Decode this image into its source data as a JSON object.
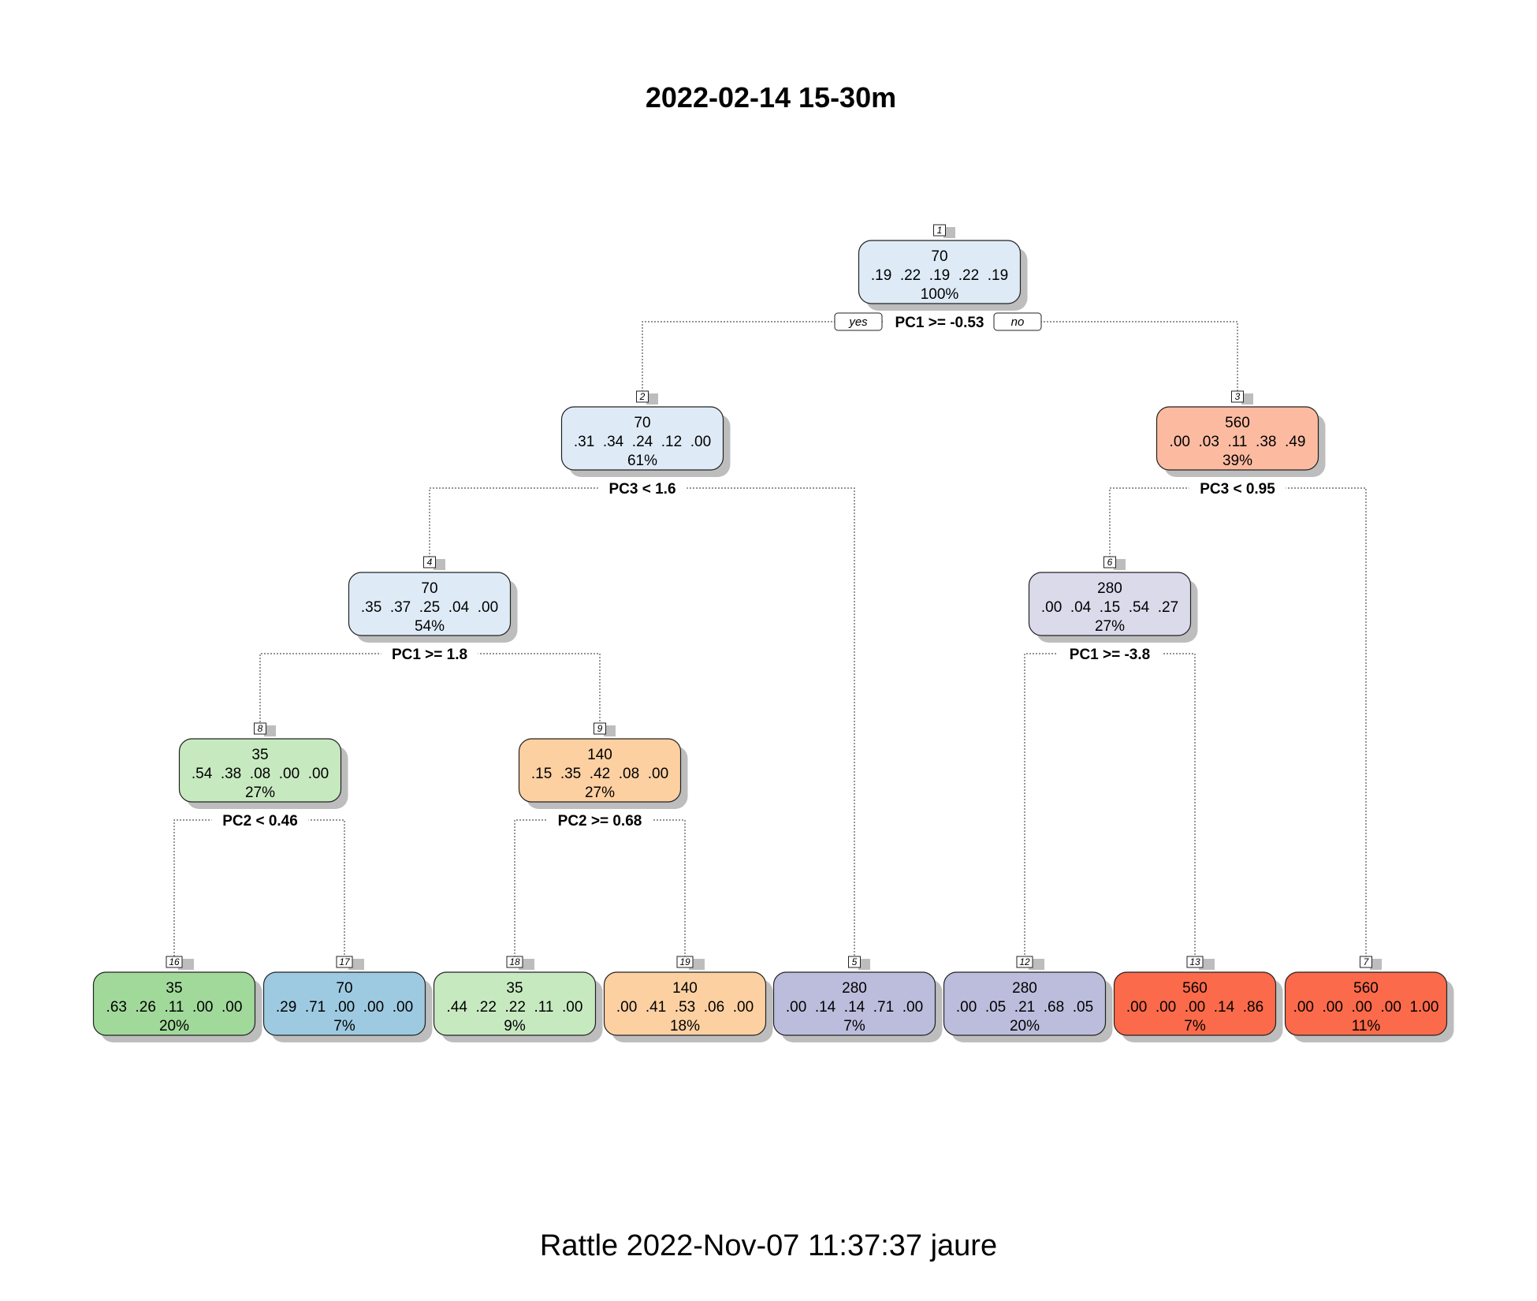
{
  "title": "2022-02-14 15-30m",
  "footer": "Rattle 2022-Nov-07 11:37:37 jaure",
  "branch_labels": {
    "yes": "yes",
    "no": "no"
  },
  "colors": {
    "light_blue": "#deebf7",
    "blue": "#9ecae1",
    "light_salmon": "#fcbba1",
    "light_lavender": "#dadaeb",
    "lavender": "#bcbddc",
    "light_green": "#c7e9c0",
    "green": "#a1d99b",
    "light_orange": "#fdd0a2",
    "red": "#fb6a4a"
  },
  "nodes": [
    {
      "id": "1",
      "label": "70",
      "probs": ".19  .22  .19  .22  .19",
      "pct": "100%",
      "split": "PC1 >= -0.53",
      "color": "light_blue"
    },
    {
      "id": "2",
      "label": "70",
      "probs": ".31  .34  .24  .12  .00",
      "pct": "61%",
      "split": "PC3 < 1.6",
      "color": "light_blue"
    },
    {
      "id": "3",
      "label": "560",
      "probs": ".00  .03  .11  .38  .49",
      "pct": "39%",
      "split": "PC3 < 0.95",
      "color": "light_salmon"
    },
    {
      "id": "4",
      "label": "70",
      "probs": ".35  .37  .25  .04  .00",
      "pct": "54%",
      "split": "PC1 >= 1.8",
      "color": "light_blue"
    },
    {
      "id": "6",
      "label": "280",
      "probs": ".00  .04  .15  .54  .27",
      "pct": "27%",
      "split": "PC1 >= -3.8",
      "color": "light_lavender"
    },
    {
      "id": "8",
      "label": "35",
      "probs": ".54  .38  .08  .00  .00",
      "pct": "27%",
      "split": "PC2 < 0.46",
      "color": "light_green"
    },
    {
      "id": "9",
      "label": "140",
      "probs": ".15  .35  .42  .08  .00",
      "pct": "27%",
      "split": "PC2 >= 0.68",
      "color": "light_orange"
    },
    {
      "id": "16",
      "label": "35",
      "probs": ".63  .26  .11  .00  .00",
      "pct": "20%",
      "split": "",
      "color": "green"
    },
    {
      "id": "17",
      "label": "70",
      "probs": ".29  .71  .00  .00  .00",
      "pct": "7%",
      "split": "",
      "color": "blue"
    },
    {
      "id": "18",
      "label": "35",
      "probs": ".44  .22  .22  .11  .00",
      "pct": "9%",
      "split": "",
      "color": "light_green"
    },
    {
      "id": "19",
      "label": "140",
      "probs": ".00  .41  .53  .06  .00",
      "pct": "18%",
      "split": "",
      "color": "light_orange"
    },
    {
      "id": "5",
      "label": "280",
      "probs": ".00  .14  .14  .71  .00",
      "pct": "7%",
      "split": "",
      "color": "lavender"
    },
    {
      "id": "12",
      "label": "280",
      "probs": ".00  .05  .21  .68  .05",
      "pct": "20%",
      "split": "",
      "color": "lavender"
    },
    {
      "id": "13",
      "label": "560",
      "probs": ".00  .00  .00  .14  .86",
      "pct": "7%",
      "split": "",
      "color": "red"
    },
    {
      "id": "7",
      "label": "560",
      "probs": ".00  .00  .00  .00  1.00",
      "pct": "11%",
      "split": "",
      "color": "red"
    }
  ],
  "edges": [
    [
      "1",
      "2"
    ],
    [
      "1",
      "3"
    ],
    [
      "2",
      "4"
    ],
    [
      "2",
      "5"
    ],
    [
      "3",
      "6"
    ],
    [
      "3",
      "7"
    ],
    [
      "4",
      "8"
    ],
    [
      "4",
      "9"
    ],
    [
      "6",
      "12"
    ],
    [
      "6",
      "13"
    ],
    [
      "8",
      "16"
    ],
    [
      "8",
      "17"
    ],
    [
      "9",
      "18"
    ],
    [
      "9",
      "19"
    ]
  ]
}
